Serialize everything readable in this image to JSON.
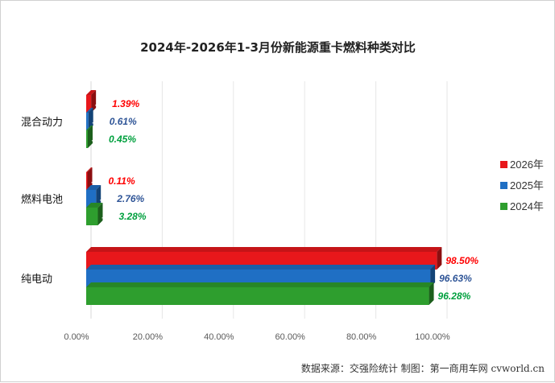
{
  "chart_data": {
    "type": "bar",
    "orientation": "horizontal",
    "title": "2024年-2026年1-3月份新能源重卡燃料种类对比",
    "categories": [
      "混合动力",
      "燃料电池",
      "纯电动"
    ],
    "series": [
      {
        "name": "2026年",
        "color": "#e8171b",
        "label_color": "#ff0000",
        "values": [
          1.39,
          0.11,
          98.5
        ],
        "labels": [
          "1.39%",
          "0.11%",
          "98.50%"
        ]
      },
      {
        "name": "2025年",
        "color": "#1f6fc4",
        "label_color": "#2f5597",
        "values": [
          0.61,
          2.76,
          96.63
        ],
        "labels": [
          "0.61%",
          "2.76%",
          "96.63%"
        ]
      },
      {
        "name": "2024年",
        "color": "#2e9e2e",
        "label_color": "#00a03e",
        "values": [
          0.45,
          3.28,
          96.28
        ],
        "labels": [
          "0.45%",
          "3.28%",
          "96.28%"
        ]
      }
    ],
    "x_ticks": [
      "0.00%",
      "20.00%",
      "40.00%",
      "60.00%",
      "80.00%",
      "100.00%"
    ],
    "xlim": [
      0,
      100
    ],
    "grid": true,
    "legend_position": "right"
  },
  "source": "数据来源：交强险统计  制图：第一商用车网 cvworld.cn"
}
